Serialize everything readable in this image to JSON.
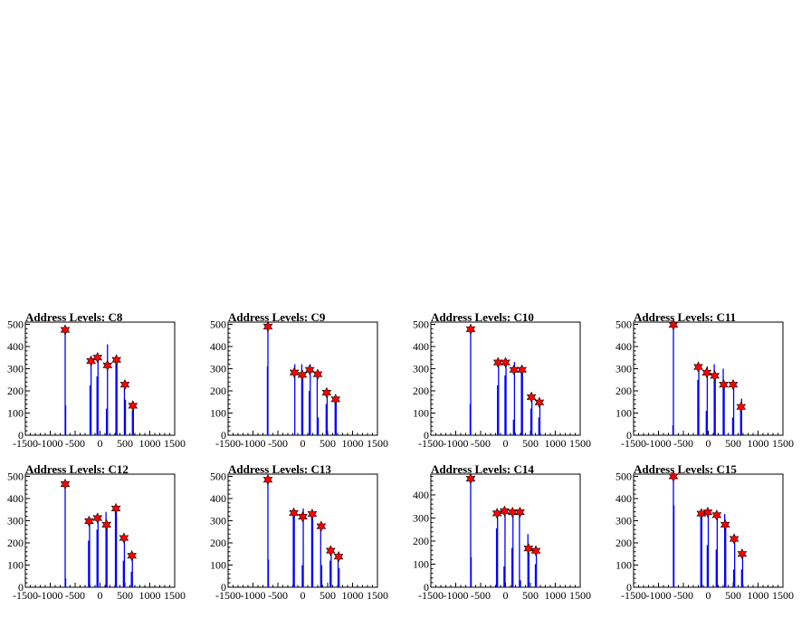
{
  "colors": {
    "histogram": "#0000ff",
    "peak_marker": "#ff0000",
    "axis": "#000000"
  },
  "chart_data": [
    {
      "type": "bar",
      "title": "Address Levels: C8",
      "xlim": [
        -1500,
        1500
      ],
      "ylim": [
        0,
        510
      ],
      "xticks": [
        -1500,
        -1000,
        -500,
        0,
        500,
        1000,
        1500
      ],
      "yticks": [
        0,
        100,
        200,
        300,
        400,
        500
      ],
      "peaks": [
        [
          -700,
          475
        ],
        [
          -180,
          335
        ],
        [
          -50,
          350
        ],
        [
          150,
          315
        ],
        [
          330,
          340
        ],
        [
          500,
          228
        ],
        [
          660,
          133
        ]
      ],
      "bins": [
        [
          -700,
          485
        ],
        [
          -690,
          135
        ],
        [
          -200,
          225
        ],
        [
          -180,
          345
        ],
        [
          -60,
          265
        ],
        [
          -40,
          355
        ],
        [
          130,
          120
        ],
        [
          150,
          410
        ],
        [
          320,
          335
        ],
        [
          340,
          345
        ],
        [
          490,
          210
        ],
        [
          510,
          160
        ],
        [
          650,
          110
        ],
        [
          670,
          140
        ]
      ]
    },
    {
      "type": "bar",
      "title": "Address Levels: C9",
      "xlim": [
        -1500,
        1500
      ],
      "ylim": [
        0,
        510
      ],
      "xticks": [
        -1500,
        -1000,
        -500,
        0,
        500,
        1000,
        1500
      ],
      "yticks": [
        0,
        100,
        200,
        300,
        400,
        500
      ],
      "peaks": [
        [
          -700,
          490
        ],
        [
          -170,
          283
        ],
        [
          -10,
          272
        ],
        [
          140,
          295
        ],
        [
          300,
          275
        ],
        [
          480,
          192
        ],
        [
          660,
          162
        ]
      ],
      "bins": [
        [
          -700,
          495
        ],
        [
          -710,
          310
        ],
        [
          -160,
          320
        ],
        [
          -20,
          320
        ],
        [
          0,
          280
        ],
        [
          130,
          200
        ],
        [
          150,
          320
        ],
        [
          290,
          280
        ],
        [
          310,
          80
        ],
        [
          470,
          140
        ],
        [
          490,
          185
        ],
        [
          650,
          150
        ],
        [
          670,
          165
        ]
      ]
    },
    {
      "type": "bar",
      "title": "Address Levels: C10",
      "xlim": [
        -1500,
        1500
      ],
      "ylim": [
        0,
        510
      ],
      "xticks": [
        -1500,
        -1000,
        -500,
        0,
        500,
        1000,
        1500
      ],
      "yticks": [
        0,
        100,
        200,
        300,
        400,
        500
      ],
      "peaks": [
        [
          -700,
          478
        ],
        [
          -150,
          328
        ],
        [
          0,
          328
        ],
        [
          170,
          295
        ],
        [
          330,
          295
        ],
        [
          520,
          172
        ],
        [
          680,
          148
        ]
      ],
      "bins": [
        [
          -700,
          485
        ],
        [
          -710,
          140
        ],
        [
          -160,
          225
        ],
        [
          -140,
          340
        ],
        [
          -10,
          270
        ],
        [
          10,
          335
        ],
        [
          160,
          70
        ],
        [
          180,
          330
        ],
        [
          320,
          290
        ],
        [
          340,
          300
        ],
        [
          510,
          120
        ],
        [
          530,
          190
        ],
        [
          670,
          80
        ],
        [
          690,
          150
        ]
      ]
    },
    {
      "type": "bar",
      "title": "Address Levels: C11",
      "xlim": [
        -1500,
        1500
      ],
      "ylim": [
        0,
        510
      ],
      "xticks": [
        -1500,
        -1000,
        -500,
        0,
        500,
        1000,
        1500
      ],
      "yticks": [
        0,
        100,
        200,
        300,
        400,
        500
      ],
      "peaks": [
        [
          -700,
          498
        ],
        [
          -200,
          308
        ],
        [
          -30,
          282
        ],
        [
          130,
          268
        ],
        [
          310,
          228
        ],
        [
          500,
          228
        ],
        [
          660,
          128
        ]
      ],
      "bins": [
        [
          -700,
          500
        ],
        [
          -710,
          45
        ],
        [
          -210,
          250
        ],
        [
          -190,
          315
        ],
        [
          -40,
          110
        ],
        [
          -20,
          310
        ],
        [
          120,
          320
        ],
        [
          140,
          260
        ],
        [
          300,
          300
        ],
        [
          320,
          230
        ],
        [
          490,
          80
        ],
        [
          510,
          230
        ],
        [
          650,
          130
        ],
        [
          670,
          165
        ]
      ]
    },
    {
      "type": "bar",
      "title": "Address Levels: C12",
      "xlim": [
        -1500,
        1500
      ],
      "ylim": [
        0,
        510
      ],
      "xticks": [
        -1500,
        -1000,
        -500,
        0,
        500,
        1000,
        1500
      ],
      "yticks": [
        0,
        100,
        200,
        300,
        400,
        500
      ],
      "peaks": [
        [
          -700,
          465
        ],
        [
          -220,
          298
        ],
        [
          -50,
          312
        ],
        [
          130,
          282
        ],
        [
          320,
          355
        ],
        [
          480,
          222
        ],
        [
          640,
          142
        ]
      ],
      "bins": [
        [
          -700,
          470
        ],
        [
          -690,
          40
        ],
        [
          -230,
          210
        ],
        [
          -210,
          310
        ],
        [
          -60,
          260
        ],
        [
          -40,
          320
        ],
        [
          120,
          340
        ],
        [
          140,
          280
        ],
        [
          310,
          360
        ],
        [
          330,
          340
        ],
        [
          470,
          120
        ],
        [
          490,
          225
        ],
        [
          630,
          70
        ],
        [
          650,
          140
        ]
      ]
    },
    {
      "type": "bar",
      "title": "Address Levels: C13",
      "xlim": [
        -1500,
        1500
      ],
      "ylim": [
        0,
        510
      ],
      "xticks": [
        -1500,
        -1000,
        -500,
        0,
        500,
        1000,
        1500
      ],
      "yticks": [
        0,
        100,
        200,
        300,
        400,
        500
      ],
      "peaks": [
        [
          -700,
          485
        ],
        [
          -180,
          335
        ],
        [
          0,
          318
        ],
        [
          190,
          330
        ],
        [
          370,
          275
        ],
        [
          560,
          165
        ],
        [
          720,
          138
        ]
      ],
      "bins": [
        [
          -700,
          490
        ],
        [
          -690,
          125
        ],
        [
          -190,
          330
        ],
        [
          -170,
          340
        ],
        [
          -10,
          100
        ],
        [
          10,
          355
        ],
        [
          180,
          330
        ],
        [
          200,
          310
        ],
        [
          360,
          290
        ],
        [
          380,
          100
        ],
        [
          550,
          120
        ],
        [
          570,
          170
        ],
        [
          710,
          140
        ],
        [
          730,
          85
        ]
      ]
    },
    {
      "type": "bar",
      "title": "Address Levels: C14",
      "xlim": [
        -1500,
        1500
      ],
      "ylim": [
        0,
        490
      ],
      "xticks": [
        -1500,
        -1000,
        -500,
        0,
        500,
        1000,
        1500
      ],
      "yticks": [
        0,
        100,
        200,
        300,
        400
      ],
      "peaks": [
        [
          -700,
          470
        ],
        [
          -170,
          320
        ],
        [
          -20,
          330
        ],
        [
          140,
          325
        ],
        [
          290,
          325
        ],
        [
          460,
          168
        ],
        [
          610,
          158
        ]
      ],
      "bins": [
        [
          -700,
          475
        ],
        [
          -690,
          130
        ],
        [
          -180,
          255
        ],
        [
          -160,
          330
        ],
        [
          -30,
          90
        ],
        [
          -10,
          330
        ],
        [
          130,
          170
        ],
        [
          150,
          330
        ],
        [
          280,
          320
        ],
        [
          300,
          30
        ],
        [
          450,
          230
        ],
        [
          470,
          150
        ],
        [
          600,
          100
        ],
        [
          620,
          160
        ]
      ]
    },
    {
      "type": "bar",
      "title": "Address Levels: C15",
      "xlim": [
        -1500,
        1500
      ],
      "ylim": [
        0,
        510
      ],
      "xticks": [
        -1500,
        -1000,
        -500,
        0,
        500,
        1000,
        1500
      ],
      "yticks": [
        0,
        100,
        200,
        300,
        400,
        500
      ],
      "peaks": [
        [
          -700,
          500
        ],
        [
          -140,
          332
        ],
        [
          -10,
          338
        ],
        [
          170,
          325
        ],
        [
          340,
          282
        ],
        [
          520,
          218
        ],
        [
          680,
          150
        ]
      ],
      "bins": [
        [
          -700,
          505
        ],
        [
          -690,
          370
        ],
        [
          -150,
          330
        ],
        [
          -130,
          340
        ],
        [
          -20,
          190
        ],
        [
          0,
          345
        ],
        [
          160,
          170
        ],
        [
          180,
          330
        ],
        [
          330,
          330
        ],
        [
          350,
          270
        ],
        [
          510,
          80
        ],
        [
          530,
          220
        ],
        [
          670,
          80
        ],
        [
          690,
          155
        ]
      ]
    }
  ]
}
